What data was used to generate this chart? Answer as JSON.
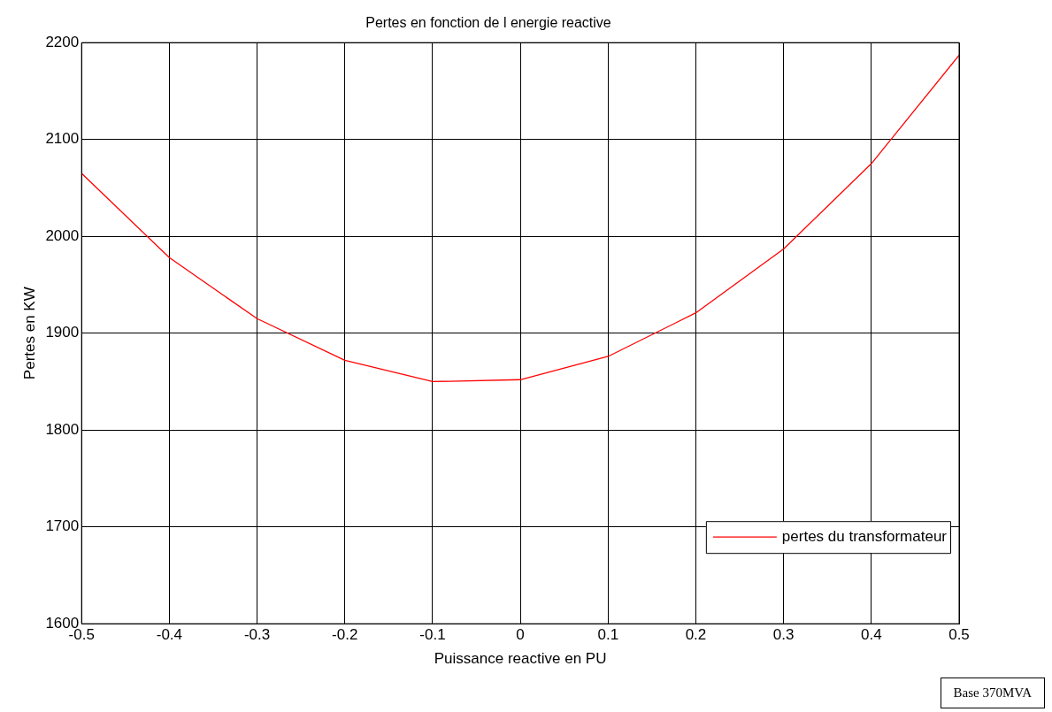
{
  "chart_data": {
    "type": "line",
    "title": "Pertes en fonction de l energie reactive",
    "xlabel": "Puissance reactive en PU",
    "ylabel": "Pertes en KW",
    "x": [
      -0.5,
      -0.4,
      -0.3,
      -0.2,
      -0.1,
      0,
      0.1,
      0.2,
      0.3,
      0.4,
      0.5
    ],
    "series": [
      {
        "name": "pertes du transformateur",
        "color": "#ff0000",
        "values": [
          2065,
          1978,
          1915,
          1872,
          1850,
          1852,
          1876,
          1921,
          1987,
          2075,
          2187
        ]
      }
    ],
    "xlim": [
      -0.5,
      0.5
    ],
    "xticks": [
      -0.5,
      -0.4,
      -0.3,
      -0.2,
      -0.1,
      0,
      0.1,
      0.2,
      0.3,
      0.4,
      0.5
    ],
    "ylim": [
      1600,
      2200
    ],
    "yticks": [
      1600,
      1700,
      1800,
      1900,
      2000,
      2100,
      2200
    ],
    "grid": true,
    "legend": "bottom right",
    "marker": "none",
    "line_style": "solid",
    "annotations": [
      "Base 370MVA"
    ]
  }
}
